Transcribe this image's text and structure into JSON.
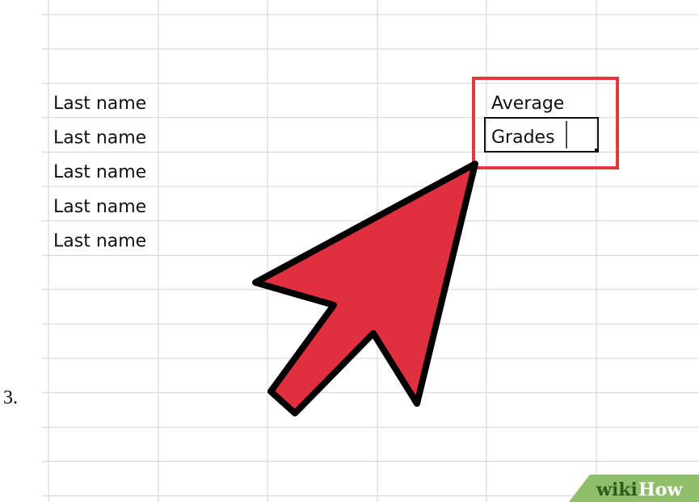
{
  "step": "3.",
  "sheet": {
    "rows": [
      "Last name",
      "Last name",
      "Last name",
      "Last name",
      "Last name"
    ],
    "header_cell": "Average",
    "active_cell": "Grades"
  },
  "watermark": {
    "wiki": "wiki",
    "how": "How"
  }
}
